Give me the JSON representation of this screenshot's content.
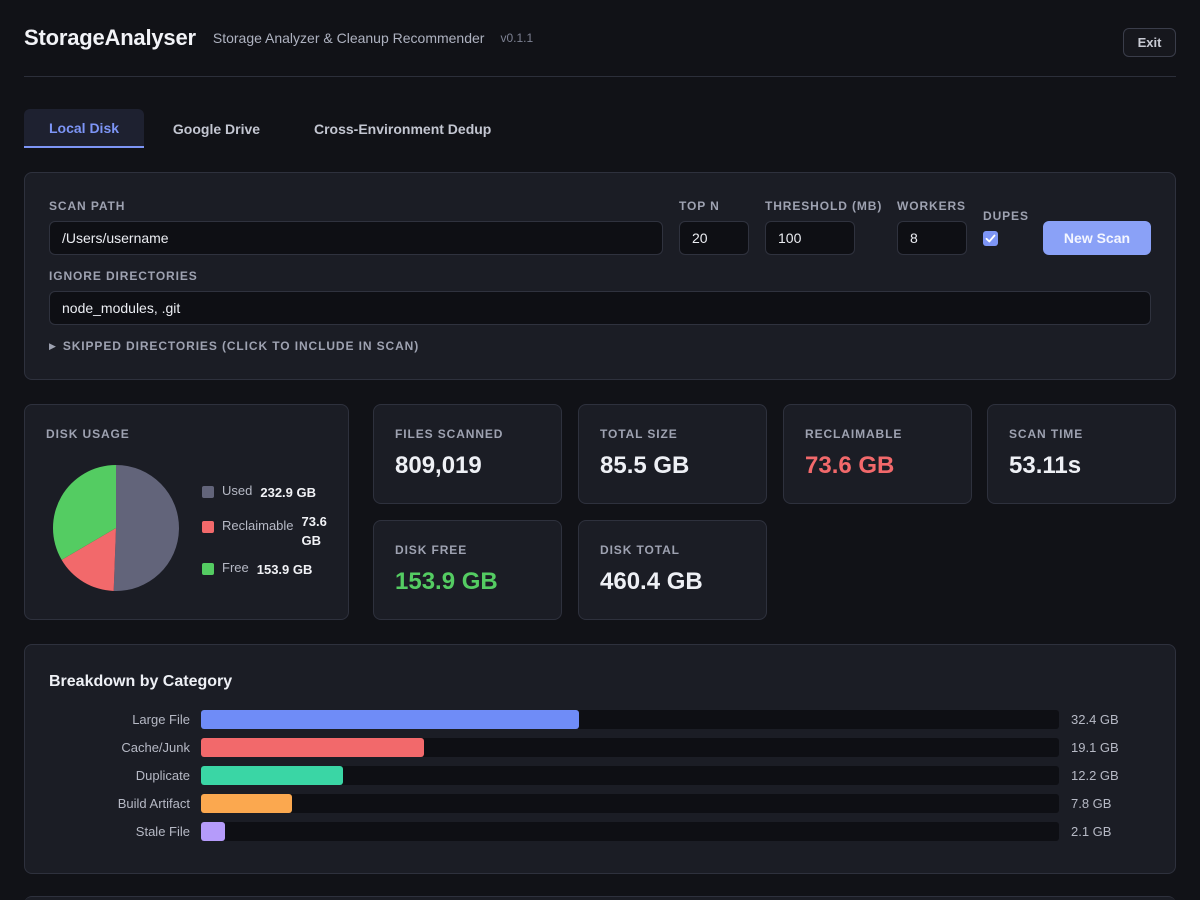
{
  "header": {
    "title": "StorageAnalyser",
    "subtitle": "Storage Analyzer & Cleanup Recommender",
    "version": "v0.1.1",
    "exit_label": "Exit"
  },
  "tabs": [
    {
      "label": "Local Disk",
      "active": true
    },
    {
      "label": "Google Drive",
      "active": false
    },
    {
      "label": "Cross-Environment Dedup",
      "active": false
    }
  ],
  "scan": {
    "path_label": "SCAN PATH",
    "path_value": "/Users/username",
    "top_n_label": "TOP N",
    "top_n_value": "20",
    "threshold_label": "THRESHOLD (MB)",
    "threshold_value": "100",
    "workers_label": "WORKERS",
    "workers_value": "8",
    "dupes_label": "DUPES",
    "dupes_checked": true,
    "new_scan_label": "New Scan",
    "ignore_label": "IGNORE DIRECTORIES",
    "ignore_value": "node_modules, .git",
    "skipped_label": "SKIPPED DIRECTORIES (CLICK TO INCLUDE IN SCAN)"
  },
  "disk_usage": {
    "label": "DISK USAGE",
    "segments": [
      {
        "name": "Used",
        "value_text": "232.9 GB",
        "value": 232.9,
        "color": "#62647a"
      },
      {
        "name": "Reclaimable",
        "value_text": "73.6 GB",
        "value": 73.6,
        "color": "#f2696b"
      },
      {
        "name": "Free",
        "value_text": "153.9 GB",
        "value": 153.9,
        "color": "#54cc62"
      }
    ]
  },
  "stats": [
    {
      "label": "FILES SCANNED",
      "value": "809,019",
      "color": "#eef0f5"
    },
    {
      "label": "TOTAL SIZE",
      "value": "85.5 GB",
      "color": "#eef0f5"
    },
    {
      "label": "RECLAIMABLE",
      "value": "73.6 GB",
      "color": "#f2696b"
    },
    {
      "label": "SCAN TIME",
      "value": "53.11s",
      "color": "#eef0f5"
    },
    {
      "label": "DISK FREE",
      "value": "153.9 GB",
      "color": "#54cc62"
    },
    {
      "label": "DISK TOTAL",
      "value": "460.4 GB",
      "color": "#eef0f5"
    }
  ],
  "breakdown": {
    "title": "Breakdown by Category",
    "max_gb": 73.6,
    "items": [
      {
        "name": "Large File",
        "value_text": "32.4 GB",
        "value": 32.4,
        "color": "#6f8cf7"
      },
      {
        "name": "Cache/Junk",
        "value_text": "19.1 GB",
        "value": 19.1,
        "color": "#f2696b"
      },
      {
        "name": "Duplicate",
        "value_text": "12.2 GB",
        "value": 12.2,
        "color": "#3ad6a5"
      },
      {
        "name": "Build Artifact",
        "value_text": "7.8 GB",
        "value": 7.8,
        "color": "#fba84f"
      },
      {
        "name": "Stale File",
        "value_text": "2.1 GB",
        "value": 2.1,
        "color": "#b59bfa"
      }
    ]
  }
}
